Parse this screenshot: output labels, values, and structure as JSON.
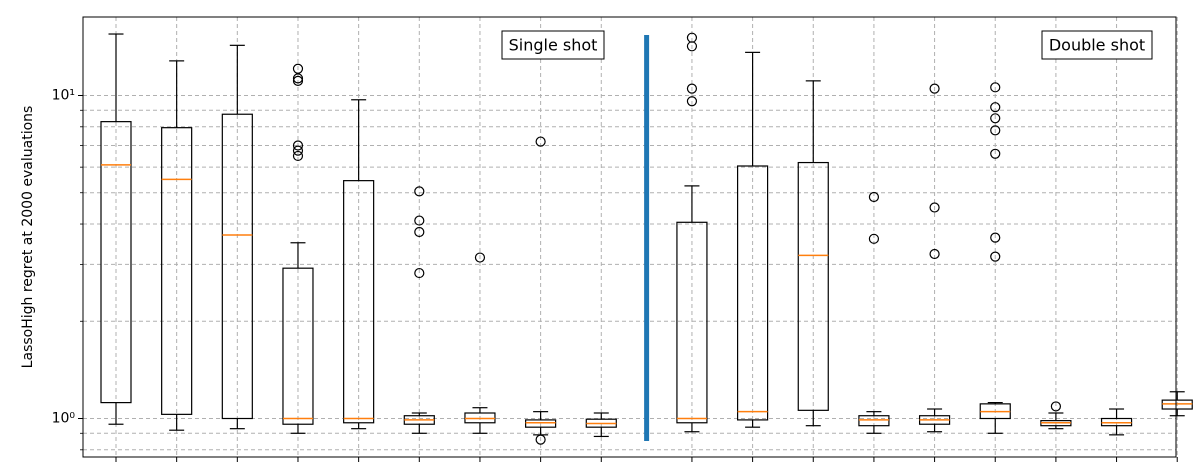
{
  "chart_data": {
    "type": "box",
    "ylabel": "LassoHigh regret at 2000 evaluations",
    "yscale": "log",
    "ylim": [
      0.76,
      17.5
    ],
    "y_tick_labels": [
      {
        "value": 1,
        "label": "10⁰"
      },
      {
        "value": 10,
        "label": "10¹"
      }
    ],
    "grid": true,
    "divider_color": "#1f77b4",
    "median_color": "#ff7f0e",
    "annotations": [
      {
        "text": "Single shot",
        "position": "top-center-left"
      },
      {
        "text": "Double shot",
        "position": "top-right"
      }
    ],
    "boxes": [
      {
        "whislo": 0.96,
        "q1": 1.12,
        "med": 6.1,
        "q3": 8.3,
        "whishi": 15.5,
        "fliers": []
      },
      {
        "whislo": 0.92,
        "q1": 1.03,
        "med": 5.5,
        "q3": 7.95,
        "whishi": 12.8,
        "fliers": []
      },
      {
        "whislo": 0.93,
        "q1": 1.0,
        "med": 3.7,
        "q3": 8.75,
        "whishi": 14.3,
        "fliers": []
      },
      {
        "whislo": 0.9,
        "q1": 0.96,
        "med": 1.0,
        "q3": 2.92,
        "whishi": 3.5,
        "fliers": [
          12.1,
          11.3,
          11.1,
          7.0,
          6.75,
          6.5
        ]
      },
      {
        "whislo": 0.93,
        "q1": 0.97,
        "med": 1.0,
        "q3": 5.45,
        "whishi": 9.7,
        "fliers": []
      },
      {
        "whislo": 0.9,
        "q1": 0.96,
        "med": 0.99,
        "q3": 1.02,
        "whishi": 1.04,
        "fliers": [
          5.05,
          4.1,
          3.78,
          2.82
        ]
      },
      {
        "whislo": 0.9,
        "q1": 0.97,
        "med": 1.0,
        "q3": 1.04,
        "whishi": 1.08,
        "fliers": [
          3.15
        ]
      },
      {
        "whislo": 0.89,
        "q1": 0.94,
        "med": 0.97,
        "q3": 0.99,
        "whishi": 1.05,
        "fliers": [
          7.2,
          0.86
        ]
      },
      {
        "whislo": 0.88,
        "q1": 0.94,
        "med": 0.965,
        "q3": 0.995,
        "whishi": 1.04,
        "fliers": []
      },
      {
        "whislo": 0.91,
        "q1": 0.97,
        "med": 1.0,
        "q3": 4.05,
        "whishi": 5.25,
        "fliers": [
          15.1,
          14.2,
          10.5,
          9.6
        ]
      },
      {
        "whislo": 0.94,
        "q1": 0.99,
        "med": 1.05,
        "q3": 6.05,
        "whishi": 13.6,
        "fliers": []
      },
      {
        "whislo": 0.95,
        "q1": 1.06,
        "med": 3.2,
        "q3": 6.2,
        "whishi": 11.1,
        "fliers": []
      },
      {
        "whislo": 0.9,
        "q1": 0.95,
        "med": 0.99,
        "q3": 1.02,
        "whishi": 1.05,
        "fliers": [
          4.85,
          3.6
        ]
      },
      {
        "whislo": 0.91,
        "q1": 0.96,
        "med": 0.99,
        "q3": 1.02,
        "whishi": 1.07,
        "fliers": [
          10.5,
          4.5,
          3.23
        ]
      },
      {
        "whislo": 0.9,
        "q1": 1.0,
        "med": 1.05,
        "q3": 1.11,
        "whishi": 1.12,
        "fliers": [
          10.6,
          9.2,
          8.5,
          7.8,
          6.6,
          3.63,
          3.17
        ]
      },
      {
        "whislo": 0.93,
        "q1": 0.95,
        "med": 0.97,
        "q3": 0.985,
        "whishi": 1.04,
        "fliers": [
          1.09
        ]
      },
      {
        "whislo": 0.89,
        "q1": 0.95,
        "med": 0.97,
        "q3": 1.0,
        "whishi": 1.07,
        "fliers": []
      },
      {
        "whislo": 1.02,
        "q1": 1.07,
        "med": 1.11,
        "q3": 1.14,
        "whishi": 1.21,
        "fliers": []
      }
    ]
  }
}
